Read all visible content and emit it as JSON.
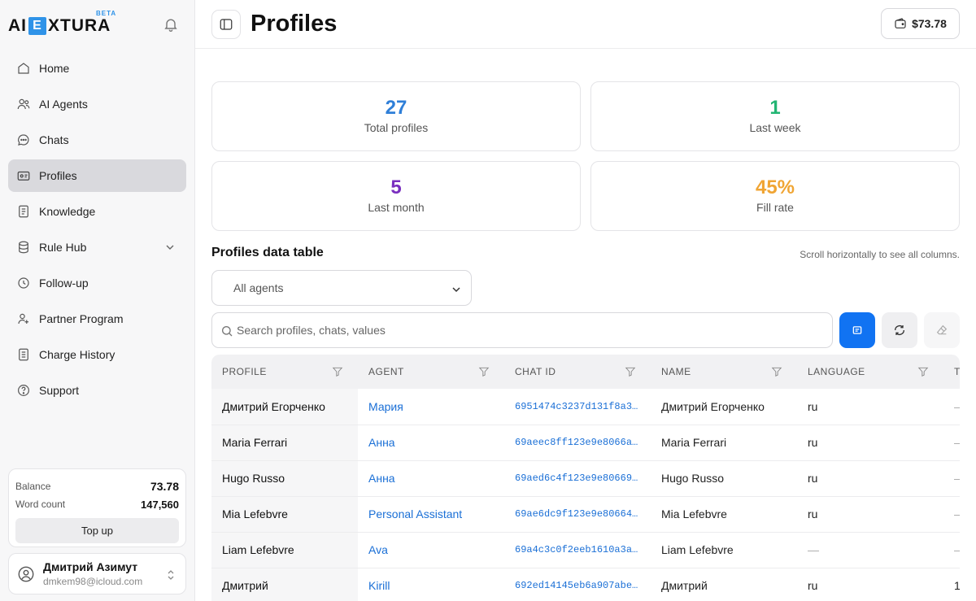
{
  "brand": {
    "logo_left": "AI",
    "logo_letter": "E",
    "logo_right": "XTURA",
    "badge": "BETA"
  },
  "sidebar": {
    "items": [
      {
        "label": "Home",
        "icon": "home-icon"
      },
      {
        "label": "AI Agents",
        "icon": "users-icon"
      },
      {
        "label": "Chats",
        "icon": "chat-icon"
      },
      {
        "label": "Profiles",
        "icon": "profile-card-icon",
        "active": true
      },
      {
        "label": "Knowledge",
        "icon": "book-icon"
      },
      {
        "label": "Rule Hub",
        "icon": "database-icon",
        "expandable": true
      },
      {
        "label": "Follow-up",
        "icon": "clock-icon"
      },
      {
        "label": "Partner Program",
        "icon": "partner-icon"
      },
      {
        "label": "Charge History",
        "icon": "receipt-icon"
      },
      {
        "label": "Support",
        "icon": "help-icon"
      }
    ],
    "balance": {
      "balance_label": "Balance",
      "balance_value": "73.78",
      "words_label": "Word count",
      "words_value": "147,560",
      "topup_label": "Top up"
    },
    "user": {
      "name": "Дмитрий Азимут",
      "email": "dmkem98@icloud.com"
    }
  },
  "header": {
    "title": "Profiles",
    "wallet": "$73.78"
  },
  "stats": [
    {
      "value": "27",
      "label": "Total profiles",
      "color": "#2f7fd8"
    },
    {
      "value": "1",
      "label": "Last week",
      "color": "#22b573"
    },
    {
      "value": "5",
      "label": "Last month",
      "color": "#7a2fbf"
    },
    {
      "value": "45%",
      "label": "Fill rate",
      "color": "#f0a534"
    }
  ],
  "table_section": {
    "title": "Profiles data table",
    "hint": "Scroll horizontally to see all columns.",
    "agent_filter": "All agents",
    "search_placeholder": "Search profiles, chats, values"
  },
  "table": {
    "columns": [
      "PROFILE",
      "AGENT",
      "CHAT ID",
      "NAME",
      "LANGUAGE",
      "T"
    ],
    "rows": [
      {
        "profile": "Дмитрий Егорченко",
        "agent": "Мария",
        "chat": "6951474c3237d131f8a3…",
        "name": "Дмитрий Егорченко",
        "lang": "ru",
        "extra": "–"
      },
      {
        "profile": "Maria Ferrari",
        "agent": "Анна",
        "chat": "69aeec8ff123e9e8066a…",
        "name": "Maria Ferrari",
        "lang": "ru",
        "extra": "–"
      },
      {
        "profile": "Hugo Russo",
        "agent": "Анна",
        "chat": "69aed6c4f123e9e80669…",
        "name": "Hugo Russo",
        "lang": "ru",
        "extra": "–"
      },
      {
        "profile": "Mia Lefebvre",
        "agent": "Personal Assistant",
        "chat": "69ae6dc9f123e9e80664…",
        "name": "Mia Lefebvre",
        "lang": "ru",
        "extra": "–"
      },
      {
        "profile": "Liam Lefebvre",
        "agent": "Ava",
        "chat": "69a4c3c0f2eeb1610a3a…",
        "name": "Liam Lefebvre",
        "lang": "—",
        "extra": "–"
      },
      {
        "profile": "Дмитрий",
        "agent": "Kirill",
        "chat": "692ed14145eb6a907abe…",
        "name": "Дмитрий",
        "lang": "ru",
        "extra": "1"
      }
    ]
  }
}
